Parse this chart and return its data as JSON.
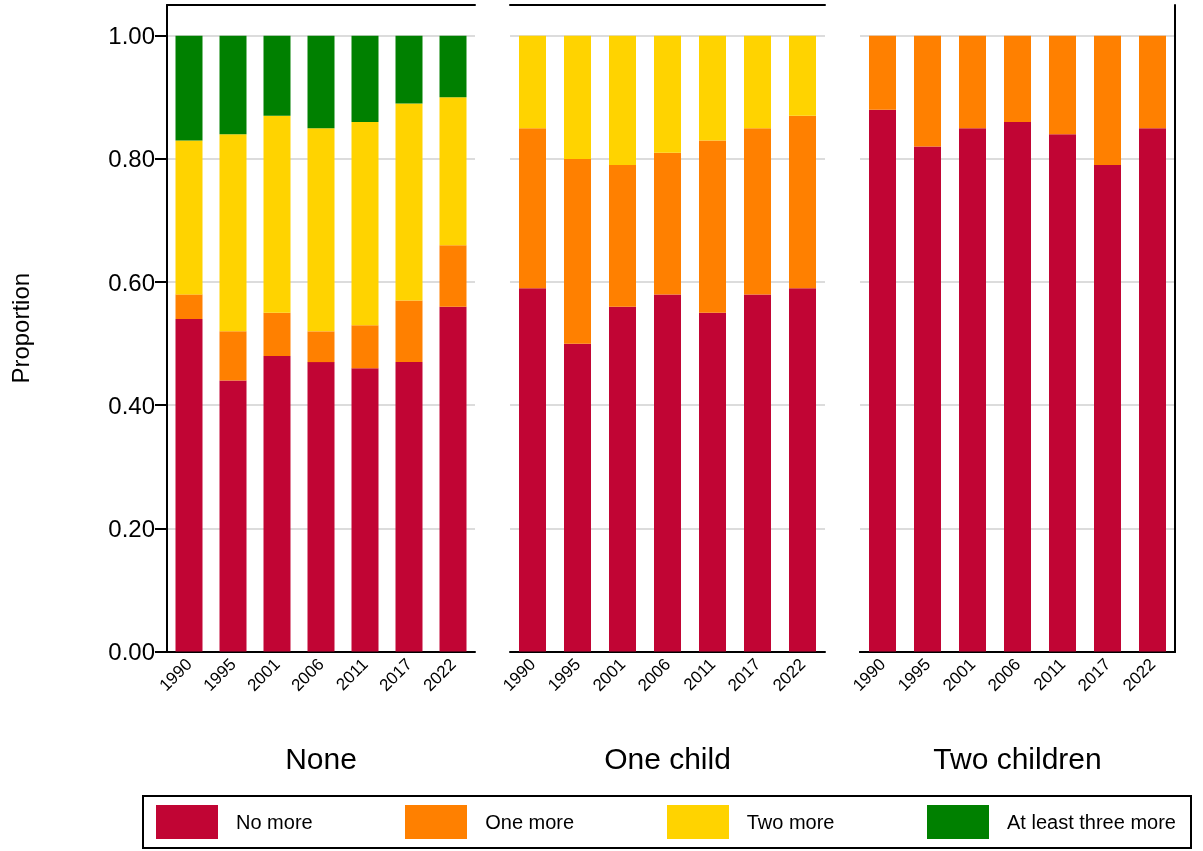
{
  "chart_data": [
    {
      "type": "bar",
      "stacked": true,
      "xlabel": "None",
      "ylabel": "Proportion",
      "categories": [
        "1990",
        "1995",
        "2001",
        "2006",
        "2011",
        "2017",
        "2022"
      ],
      "ylim": [
        0,
        1.05
      ],
      "yticks": [
        {
          "value": 0,
          "label": "0.00"
        },
        {
          "value": 0.2,
          "label": "0.20"
        },
        {
          "value": 0.4,
          "label": "0.40"
        },
        {
          "value": 0.6,
          "label": "0.60"
        },
        {
          "value": 0.8,
          "label": "0.80"
        },
        {
          "value": 1,
          "label": "1.00"
        }
      ],
      "grid": "y",
      "legend": "bottom",
      "series": [
        {
          "name": "No more",
          "color": "#c10534",
          "values": [
            0.54,
            0.44,
            0.48,
            0.47,
            0.46,
            0.47,
            0.56
          ]
        },
        {
          "name": "One more",
          "color": "#ff8000",
          "values": [
            0.04,
            0.08,
            0.07,
            0.05,
            0.07,
            0.1,
            0.1
          ]
        },
        {
          "name": "Two more",
          "color": "#ffd300",
          "values": [
            0.25,
            0.32,
            0.32,
            0.33,
            0.33,
            0.32,
            0.24
          ]
        },
        {
          "name": "At least three more",
          "color": "#008000",
          "values": [
            0.17,
            0.16,
            0.13,
            0.15,
            0.14,
            0.11,
            0.1
          ]
        }
      ]
    },
    {
      "type": "bar",
      "stacked": true,
      "xlabel": "One child",
      "categories": [
        "1990",
        "1995",
        "2001",
        "2006",
        "2011",
        "2017",
        "2022"
      ],
      "ylim": [
        0,
        1.05
      ],
      "yticks": [
        0,
        0.2,
        0.4,
        0.6,
        0.8,
        1
      ],
      "grid": "y",
      "tick_labels": "x",
      "series": [
        {
          "color": "#c10534",
          "values": [
            0.59,
            0.5,
            0.56,
            0.58,
            0.55,
            0.58,
            0.59
          ]
        },
        {
          "color": "#ff8000",
          "values": [
            0.26,
            0.3,
            0.23,
            0.23,
            0.28,
            0.27,
            0.28
          ]
        },
        {
          "color": "#ffd300",
          "values": [
            0.15,
            0.2,
            0.21,
            0.19,
            0.17,
            0.15,
            0.13
          ]
        }
      ]
    },
    {
      "type": "bar",
      "stacked": true,
      "xlabel": "Two children",
      "categories": [
        "1990",
        "1995",
        "2001",
        "2006",
        "2011",
        "2017",
        "2022"
      ],
      "ylim": [
        0,
        1.05
      ],
      "yticks": [
        0,
        0.2,
        0.4,
        0.6,
        0.8,
        1
      ],
      "grid": "y",
      "tick_labels": "x",
      "series": [
        {
          "color": "#c10534",
          "values": [
            0.88,
            0.82,
            0.85,
            0.86,
            0.84,
            0.79,
            0.85
          ]
        },
        {
          "color": "#ff8000",
          "values": [
            0.12,
            0.18,
            0.15,
            0.14,
            0.16,
            0.21,
            0.15
          ]
        }
      ]
    }
  ]
}
